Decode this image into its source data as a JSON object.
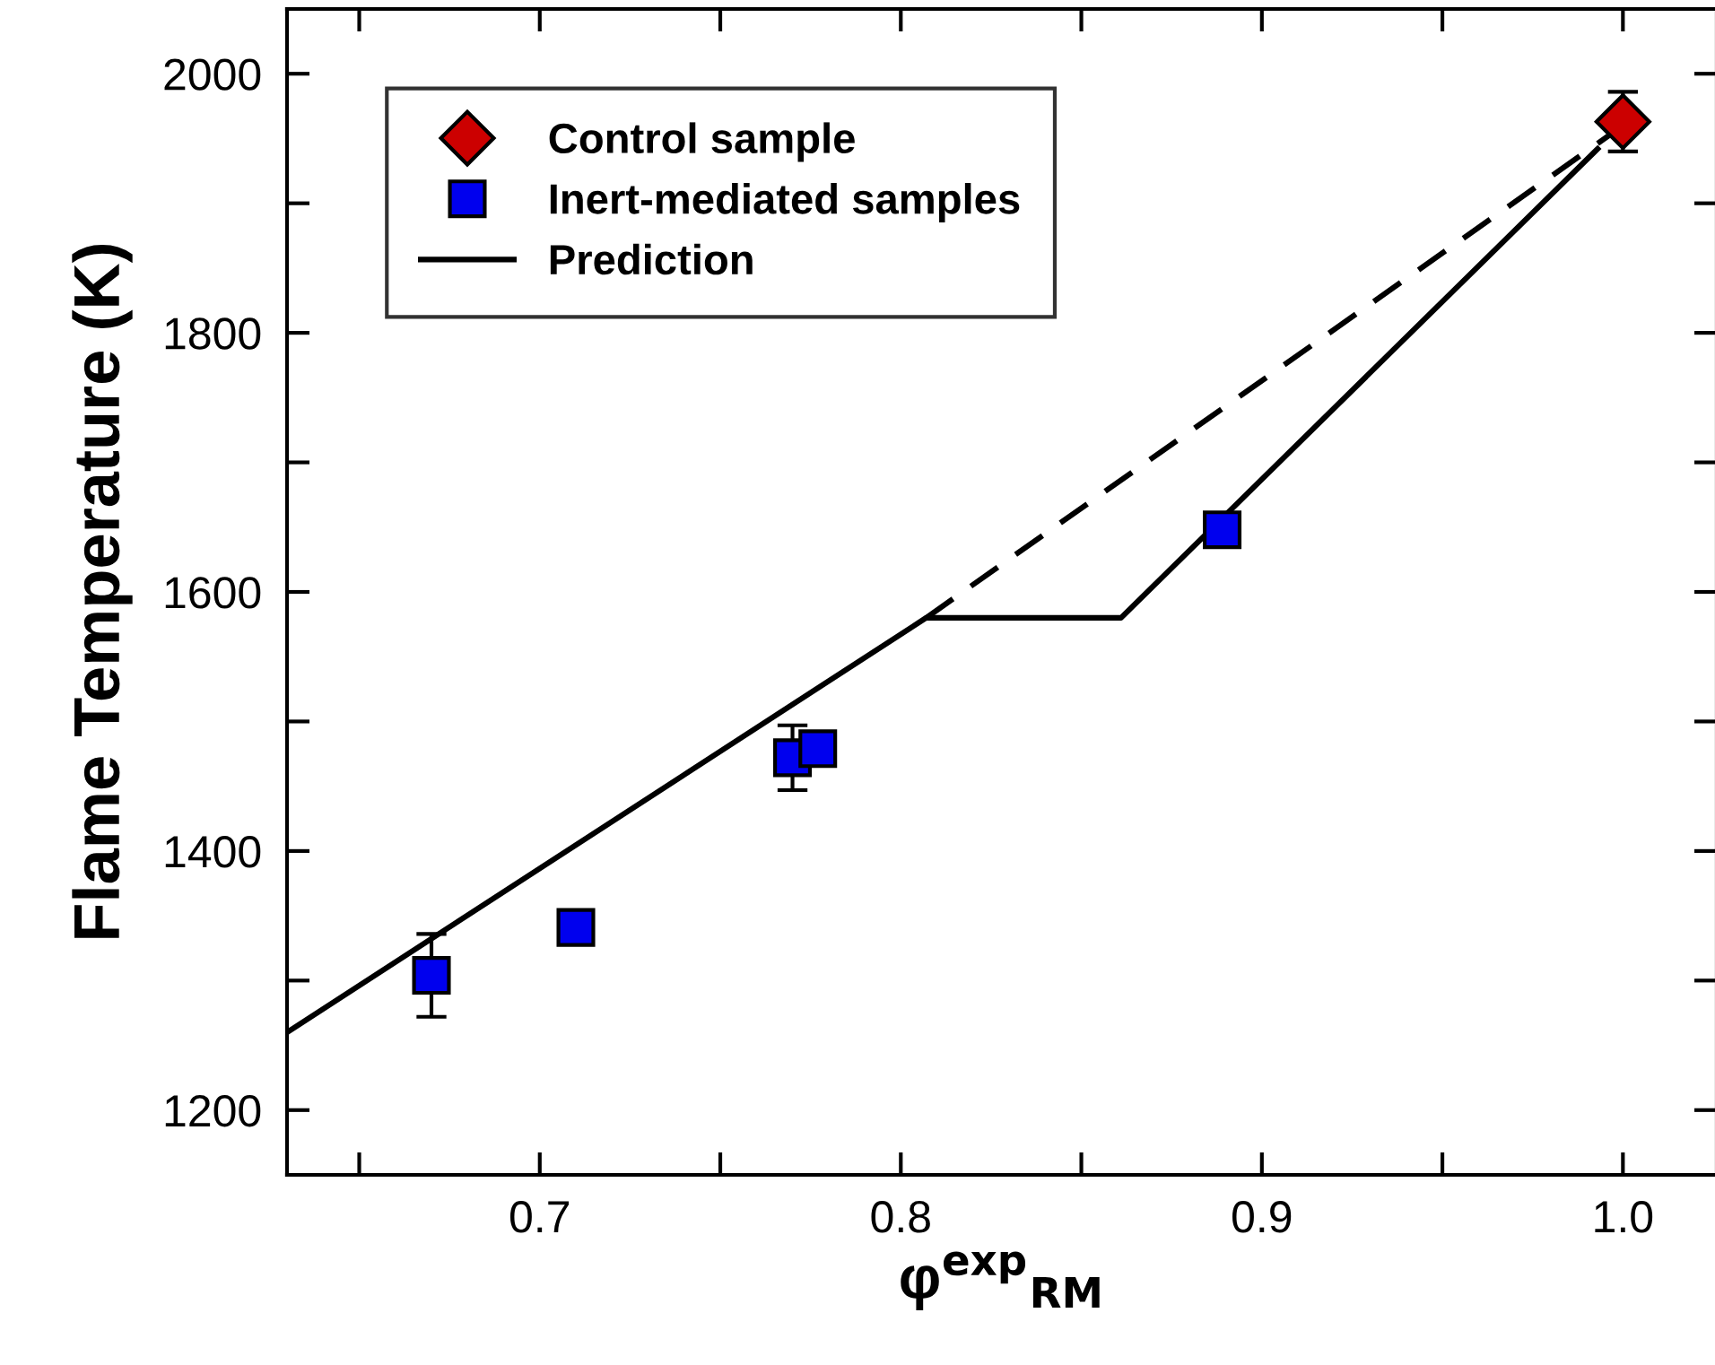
{
  "chart_data": {
    "type": "scatter",
    "xlabel": "φ$^{exp}$$_{RM}$",
    "ylabel": "Flame Temperature (K)",
    "xlim": [
      0.63,
      1.026
    ],
    "ylim": [
      1150,
      2050
    ],
    "xticks": [
      {
        "value": 0.65,
        "label": null
      },
      0.7,
      {
        "value": 0.75,
        "label": null
      },
      0.8,
      {
        "value": 0.85,
        "label": null
      },
      0.9,
      {
        "value": 0.95,
        "label": null
      },
      {
        "value": 1.0,
        "label": "1.0"
      }
    ],
    "yticks": [
      1200,
      {
        "value": 1300,
        "label": null
      },
      1400,
      {
        "value": 1500,
        "label": null
      },
      1600,
      {
        "value": 1700,
        "label": null
      },
      1800,
      {
        "value": 1900,
        "label": null
      },
      2000
    ],
    "legend": "top left",
    "grid": false,
    "series": [
      {
        "name": "Prediction",
        "type": "line",
        "color": "#000000",
        "line_style": "solid",
        "marker": "none",
        "x": [
          0.63,
          0.807,
          0.861,
          0.993
        ],
        "values": [
          1260,
          1580,
          1580,
          1942
        ]
      },
      {
        "type": "line",
        "color": "#000000",
        "line_style": "dashed",
        "marker": "none",
        "x": [
          0.807,
          1.0
        ],
        "values": [
          1580,
          1960
        ]
      },
      {
        "name": "Control sample",
        "color": "#cc0000",
        "marker": "diamond",
        "x": [
          1.0
        ],
        "values": [
          1963
        ],
        "errors": [
          23
        ]
      },
      {
        "name": "Inert-mediated samples",
        "color": "#0000ee",
        "marker": "square",
        "x": [
          0.67,
          0.71,
          0.77,
          0.777,
          0.889
        ],
        "values": [
          1304,
          1341,
          1472,
          1479,
          1648
        ],
        "errors": [
          32,
          13,
          25,
          null,
          null
        ]
      }
    ]
  }
}
